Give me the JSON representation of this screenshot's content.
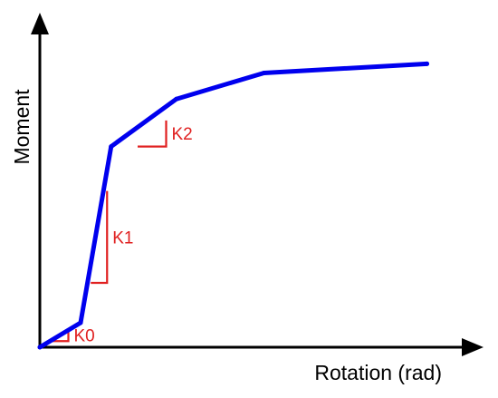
{
  "chart_data": {
    "type": "line",
    "title": "",
    "xlabel": "Rotation (rad)",
    "ylabel": "Moment",
    "xlim": [
      0,
      10
    ],
    "ylim": [
      0,
      10
    ],
    "grid": false,
    "ticks": false,
    "legend": "none",
    "series": [
      {
        "x": [
          0,
          1.0,
          1.75,
          3.35,
          5.5,
          9.5
        ],
        "y": [
          0,
          0.8,
          6.55,
          8.1,
          8.95,
          9.25
        ]
      }
    ],
    "stiffness_markers": [
      {
        "label": "K0",
        "x0": 0.2,
        "x1": 0.7,
        "y0": 0.2,
        "y1": 0.6
      },
      {
        "label": "K1",
        "x0": 1.25,
        "x1": 1.65,
        "y0": 2.1,
        "y1": 5.1
      },
      {
        "label": "K2",
        "x0": 2.4,
        "x1": 3.1,
        "y0": 6.55,
        "y1": 7.4
      }
    ]
  },
  "colors": {
    "curve": "#0000ee",
    "markers": "#e02020",
    "axes": "#000000"
  }
}
